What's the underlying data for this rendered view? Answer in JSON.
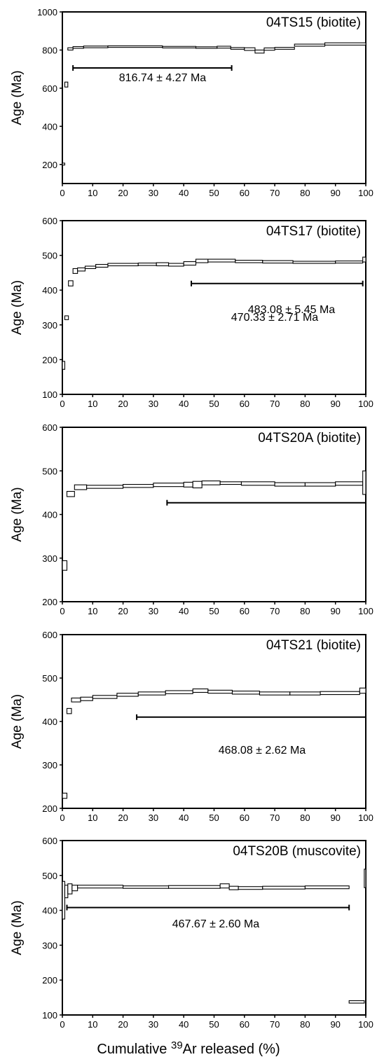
{
  "figure": {
    "xlabel_pre": "Cumulative ",
    "xlabel_sup": "39",
    "xlabel_post": "Ar released (%)"
  },
  "chart_data": [
    {
      "type": "line",
      "title": "04TS15 (biotite)",
      "ylabel": "Age (Ma)",
      "xlim": [
        0,
        100
      ],
      "ylim": [
        100,
        1000
      ],
      "x_ticks": [
        0,
        10,
        20,
        30,
        40,
        50,
        60,
        70,
        80,
        90,
        100
      ],
      "y_ticks": [
        200,
        400,
        600,
        800,
        1000
      ],
      "plateau": {
        "label": "816.74 ± 4.27 Ma",
        "x_start": 3.5,
        "x_end": 55.8,
        "y": 706
      },
      "steps": [
        {
          "x0": 0,
          "x1": 0.8,
          "y0": 197,
          "y1": 207
        },
        {
          "x0": 0.8,
          "x1": 1.8,
          "y0": 606,
          "y1": 632
        },
        {
          "x0": 1.8,
          "x1": 3.5,
          "y0": 800,
          "y1": 812
        },
        {
          "x0": 3.5,
          "x1": 7,
          "y0": 809,
          "y1": 818
        },
        {
          "x0": 7,
          "x1": 15,
          "y0": 812,
          "y1": 821
        },
        {
          "x0": 15,
          "x1": 33,
          "y0": 814,
          "y1": 822
        },
        {
          "x0": 33,
          "x1": 44,
          "y0": 811,
          "y1": 819
        },
        {
          "x0": 44,
          "x1": 51,
          "y0": 809,
          "y1": 817
        },
        {
          "x0": 51,
          "x1": 55.5,
          "y0": 810,
          "y1": 820
        },
        {
          "x0": 55.5,
          "x1": 60,
          "y0": 804,
          "y1": 813
        },
        {
          "x0": 60,
          "x1": 63.5,
          "y0": 798,
          "y1": 812
        },
        {
          "x0": 63.5,
          "x1": 66.5,
          "y0": 784,
          "y1": 800
        },
        {
          "x0": 66.5,
          "x1": 70,
          "y0": 799,
          "y1": 811
        },
        {
          "x0": 70,
          "x1": 76.5,
          "y0": 804,
          "y1": 814
        },
        {
          "x0": 76.5,
          "x1": 86.5,
          "y0": 820,
          "y1": 831
        },
        {
          "x0": 86.5,
          "x1": 100,
          "y0": 826,
          "y1": 838
        }
      ]
    },
    {
      "type": "line",
      "title": "04TS17 (biotite)",
      "ylabel": "Age (Ma)",
      "xlim": [
        0,
        100
      ],
      "ylim": [
        100,
        600
      ],
      "x_ticks": [
        0,
        10,
        20,
        30,
        40,
        50,
        60,
        70,
        80,
        90,
        100
      ],
      "y_ticks": [
        100,
        200,
        300,
        400,
        500,
        600
      ],
      "plateau": {
        "label": "483.08 ± 5.45 Ma",
        "x_start": 42.5,
        "x_end": 99,
        "y": 419
      },
      "steps": [
        {
          "x0": 0,
          "x1": 0.8,
          "y0": 172,
          "y1": 195
        },
        {
          "x0": 0.8,
          "x1": 2,
          "y0": 315,
          "y1": 326
        },
        {
          "x0": 2,
          "x1": 3.5,
          "y0": 412,
          "y1": 427
        },
        {
          "x0": 3.5,
          "x1": 5,
          "y0": 448,
          "y1": 462
        },
        {
          "x0": 5,
          "x1": 7.5,
          "y0": 455,
          "y1": 464
        },
        {
          "x0": 7.5,
          "x1": 11,
          "y0": 462,
          "y1": 469
        },
        {
          "x0": 11,
          "x1": 15,
          "y0": 466,
          "y1": 474
        },
        {
          "x0": 15,
          "x1": 25,
          "y0": 470,
          "y1": 477
        },
        {
          "x0": 25,
          "x1": 31,
          "y0": 471,
          "y1": 478
        },
        {
          "x0": 31,
          "x1": 35,
          "y0": 470,
          "y1": 479
        },
        {
          "x0": 35,
          "x1": 40,
          "y0": 469,
          "y1": 477
        },
        {
          "x0": 40,
          "x1": 44,
          "y0": 472,
          "y1": 482
        },
        {
          "x0": 44,
          "x1": 48,
          "y0": 479,
          "y1": 489
        },
        {
          "x0": 48,
          "x1": 57,
          "y0": 481,
          "y1": 489
        },
        {
          "x0": 57,
          "x1": 66,
          "y0": 479,
          "y1": 486
        },
        {
          "x0": 66,
          "x1": 76,
          "y0": 478,
          "y1": 485
        },
        {
          "x0": 76,
          "x1": 90,
          "y0": 477,
          "y1": 483
        },
        {
          "x0": 90,
          "x1": 99,
          "y0": 478,
          "y1": 484
        },
        {
          "x0": 99,
          "x1": 100,
          "y0": 481,
          "y1": 495
        }
      ]
    },
    {
      "type": "line",
      "title": "04TS20A (biotite)",
      "ylabel": "Age (Ma)",
      "xlim": [
        0,
        100
      ],
      "ylim": [
        200,
        600
      ],
      "x_ticks": [
        0,
        10,
        20,
        30,
        40,
        50,
        60,
        70,
        80,
        90,
        100
      ],
      "y_ticks": [
        200,
        300,
        400,
        500,
        600
      ],
      "plateau": {
        "label": "470.33 ± 2.71 Ma",
        "x_start": 34.5,
        "x_end": 100,
        "y": 427
      },
      "steps": [
        {
          "x0": 0,
          "x1": 1.5,
          "y0": 272,
          "y1": 294
        },
        {
          "x0": 1.5,
          "x1": 4,
          "y0": 441,
          "y1": 453
        },
        {
          "x0": 4,
          "x1": 8,
          "y0": 457,
          "y1": 468
        },
        {
          "x0": 8,
          "x1": 20,
          "y0": 460,
          "y1": 467
        },
        {
          "x0": 20,
          "x1": 30,
          "y0": 462,
          "y1": 469
        },
        {
          "x0": 30,
          "x1": 40,
          "y0": 464,
          "y1": 472
        },
        {
          "x0": 40,
          "x1": 43,
          "y0": 463,
          "y1": 474
        },
        {
          "x0": 43,
          "x1": 46,
          "y0": 461,
          "y1": 476
        },
        {
          "x0": 46,
          "x1": 52,
          "y0": 468,
          "y1": 477
        },
        {
          "x0": 52,
          "x1": 59,
          "y0": 469,
          "y1": 475
        },
        {
          "x0": 59,
          "x1": 70,
          "y0": 467,
          "y1": 475
        },
        {
          "x0": 70,
          "x1": 80,
          "y0": 465,
          "y1": 473
        },
        {
          "x0": 80,
          "x1": 90,
          "y0": 465,
          "y1": 473
        },
        {
          "x0": 90,
          "x1": 99,
          "y0": 467,
          "y1": 475
        },
        {
          "x0": 99,
          "x1": 100,
          "y0": 446,
          "y1": 500
        }
      ]
    },
    {
      "type": "line",
      "title": "04TS21 (biotite)",
      "ylabel": "Age (Ma)",
      "xlim": [
        0,
        100
      ],
      "ylim": [
        200,
        600
      ],
      "x_ticks": [
        0,
        10,
        20,
        30,
        40,
        50,
        60,
        70,
        80,
        90,
        100
      ],
      "y_ticks": [
        200,
        300,
        400,
        500,
        600
      ],
      "plateau": {
        "label": "468.08 ± 2.62 Ma",
        "x_start": 24.5,
        "x_end": 100,
        "y": 410
      },
      "steps": [
        {
          "x0": 0,
          "x1": 1.5,
          "y0": 223,
          "y1": 235
        },
        {
          "x0": 1.5,
          "x1": 3,
          "y0": 418,
          "y1": 430
        },
        {
          "x0": 3,
          "x1": 6,
          "y0": 445,
          "y1": 454
        },
        {
          "x0": 6,
          "x1": 10,
          "y0": 448,
          "y1": 456
        },
        {
          "x0": 10,
          "x1": 18,
          "y0": 453,
          "y1": 460
        },
        {
          "x0": 18,
          "x1": 25,
          "y0": 458,
          "y1": 465
        },
        {
          "x0": 25,
          "x1": 34,
          "y0": 461,
          "y1": 468
        },
        {
          "x0": 34,
          "x1": 43,
          "y0": 464,
          "y1": 471
        },
        {
          "x0": 43,
          "x1": 48,
          "y0": 467,
          "y1": 475
        },
        {
          "x0": 48,
          "x1": 56,
          "y0": 465,
          "y1": 472
        },
        {
          "x0": 56,
          "x1": 65,
          "y0": 463,
          "y1": 470
        },
        {
          "x0": 65,
          "x1": 75,
          "y0": 461,
          "y1": 468
        },
        {
          "x0": 75,
          "x1": 85,
          "y0": 461,
          "y1": 468
        },
        {
          "x0": 85,
          "x1": 98,
          "y0": 462,
          "y1": 469
        },
        {
          "x0": 98,
          "x1": 100,
          "y0": 465,
          "y1": 477
        }
      ]
    },
    {
      "type": "line",
      "title": "04TS20B (muscovite)",
      "ylabel": "Age (Ma)",
      "xlim": [
        0,
        100
      ],
      "ylim": [
        100,
        600
      ],
      "x_ticks": [
        0,
        10,
        20,
        30,
        40,
        50,
        60,
        70,
        80,
        90,
        100
      ],
      "y_ticks": [
        100,
        200,
        300,
        400,
        500,
        600
      ],
      "plateau": {
        "label": "467.67 ± 2.60 Ma",
        "x_start": 1.5,
        "x_end": 94.5,
        "y": 408
      },
      "steps": [
        {
          "x0": 0,
          "x1": 0.8,
          "y0": 375,
          "y1": 483
        },
        {
          "x0": 0.8,
          "x1": 1.8,
          "y0": 436,
          "y1": 472
        },
        {
          "x0": 1.8,
          "x1": 3.2,
          "y0": 447,
          "y1": 476
        },
        {
          "x0": 3.2,
          "x1": 5,
          "y0": 456,
          "y1": 472
        },
        {
          "x0": 5,
          "x1": 20,
          "y0": 464,
          "y1": 472
        },
        {
          "x0": 20,
          "x1": 35,
          "y0": 463,
          "y1": 470
        },
        {
          "x0": 35,
          "x1": 52,
          "y0": 463,
          "y1": 471
        },
        {
          "x0": 52,
          "x1": 55,
          "y0": 464,
          "y1": 476
        },
        {
          "x0": 55,
          "x1": 58,
          "y0": 459,
          "y1": 469
        },
        {
          "x0": 58,
          "x1": 66,
          "y0": 460,
          "y1": 468
        },
        {
          "x0": 66,
          "x1": 80,
          "y0": 461,
          "y1": 469
        },
        {
          "x0": 80,
          "x1": 94.5,
          "y0": 462,
          "y1": 470
        },
        {
          "x0": 94.5,
          "x1": 99.5,
          "y0": 134,
          "y1": 141
        },
        {
          "x0": 99.5,
          "x1": 100,
          "y0": 465,
          "y1": 518
        }
      ]
    }
  ]
}
